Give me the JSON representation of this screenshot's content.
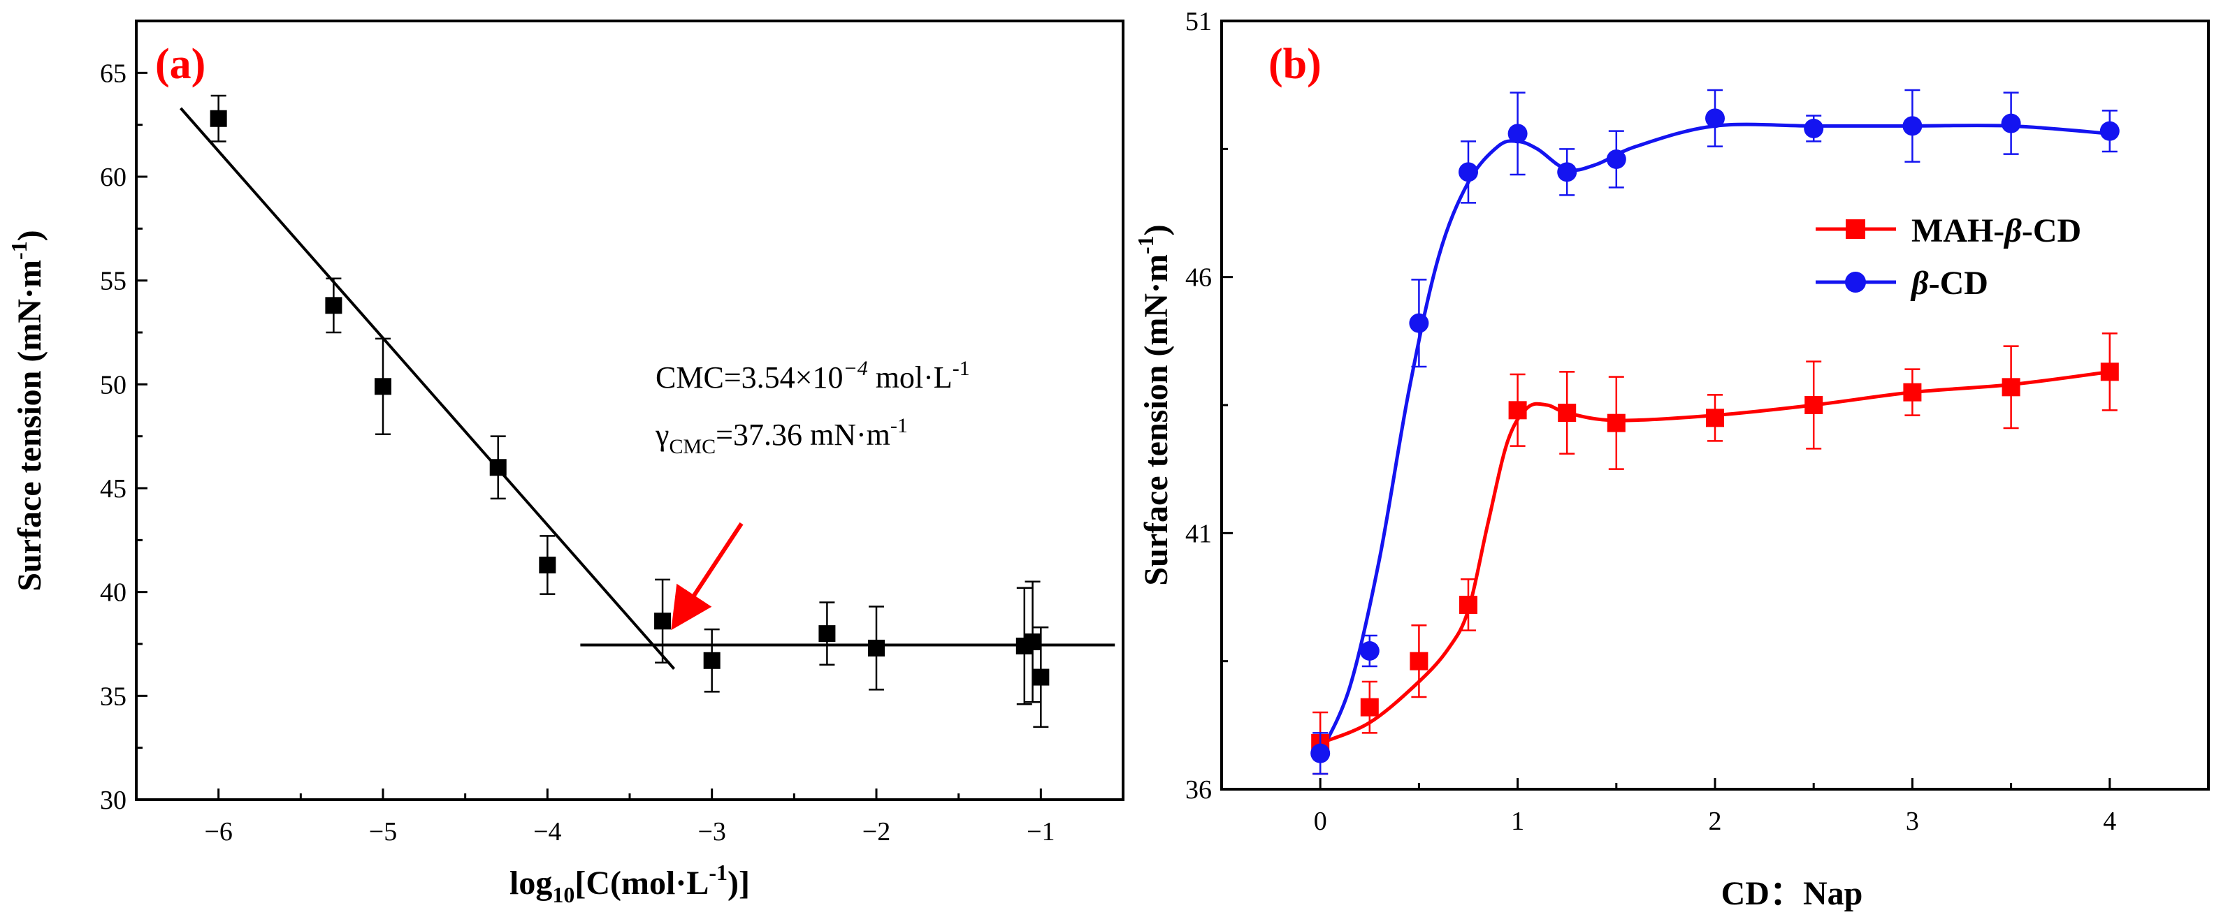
{
  "figure": {
    "colors": {
      "black": "#000000",
      "red": "#ff0000",
      "blue": "#1414f0",
      "label_red": "#ff0000",
      "arrow_red": "#ff0000"
    }
  },
  "chart_data": [
    {
      "type": "scatter",
      "panel_label": "(a)",
      "title": "",
      "xlabel": "log10[C(mol·L-1)]",
      "xlabel_parts": {
        "pre": "log",
        "sub": "10",
        "mid": "[C(mol·L",
        "sup": "-1",
        "post": ")]"
      },
      "ylabel": "Surface tension (mN·m-1)",
      "ylabel_parts": {
        "pre": "Surface tension (mN·m",
        "sup": "-1",
        "post": ")"
      },
      "xlim": [
        -6.5,
        -0.5
      ],
      "ylim": [
        30,
        67.5
      ],
      "xticks": [
        -6,
        -5,
        -4,
        -3,
        -2,
        -1
      ],
      "xtick_labels": [
        "−6",
        "−5",
        "−4",
        "−3",
        "−2",
        "−1"
      ],
      "yticks": [
        30,
        35,
        40,
        45,
        50,
        55,
        60,
        65
      ],
      "ytick_labels": [
        "30",
        "35",
        "40",
        "45",
        "50",
        "55",
        "60",
        "65"
      ],
      "series": [
        {
          "name": "data",
          "marker": "square",
          "color": "#000000",
          "x": [
            -6.0,
            -5.3,
            -5.0,
            -4.3,
            -4.0,
            -3.3,
            -3.0,
            -2.3,
            -2.0,
            -1.1,
            -1.05,
            -1.0
          ],
          "y": [
            62.8,
            53.8,
            49.9,
            46.0,
            41.3,
            38.6,
            36.7,
            38.0,
            37.3,
            37.4,
            37.6,
            35.9
          ],
          "err": [
            1.1,
            1.3,
            2.3,
            1.5,
            1.4,
            2.0,
            1.5,
            1.5,
            2.0,
            2.8,
            2.9,
            2.4
          ]
        }
      ],
      "fit_lines": [
        {
          "name": "pre-CMC fit",
          "x": [
            -6.23,
            -3.23
          ],
          "y": [
            63.3,
            36.3
          ]
        },
        {
          "name": "post-CMC fit",
          "x": [
            -3.8,
            -0.55
          ],
          "y": [
            37.45,
            37.45
          ]
        }
      ],
      "annotations": {
        "cmc": {
          "pre": "CMC=3.54×10",
          "sup": "−4",
          "post": " mol·L",
          "sup2": "-1"
        },
        "gamma": {
          "pre": "γ",
          "sub": "CMC",
          "post": "=37.36 mN·m",
          "sup": "-1"
        },
        "arrow": {
          "from": [
            -2.82,
            43.3
          ],
          "to": [
            -3.22,
            38.5
          ]
        }
      }
    },
    {
      "type": "line",
      "panel_label": "(b)",
      "title": "",
      "xlabel": "CD：Nap",
      "ylabel": "Surface tension (mN·m-1)",
      "ylabel_parts": {
        "pre": "Surface tension (mN·m",
        "sup": "-1",
        "post": ")"
      },
      "xlim": [
        -0.5,
        4.5
      ],
      "ylim": [
        36,
        51
      ],
      "xticks": [
        0,
        1,
        2,
        3,
        4
      ],
      "xtick_labels": [
        "0",
        "1",
        "2",
        "3",
        "4"
      ],
      "yticks": [
        36,
        41,
        46,
        51
      ],
      "ytick_labels": [
        "36",
        "41",
        "46",
        "51"
      ],
      "legend_position": "right",
      "series": [
        {
          "name": "MAH-β-CD",
          "legend_parts": {
            "pre": "MAH-",
            "it": "β",
            "post": "-CD"
          },
          "marker": "square",
          "color": "#ff0000",
          "x": [
            0,
            0.25,
            0.5,
            0.75,
            1.0,
            1.25,
            1.5,
            2.0,
            2.5,
            3.0,
            3.5,
            4.0
          ],
          "y": [
            36.9,
            37.6,
            38.5,
            39.6,
            43.4,
            43.35,
            43.15,
            43.25,
            43.5,
            43.75,
            43.85,
            44.15
          ],
          "err": [
            0.6,
            0.5,
            0.7,
            0.5,
            0.7,
            0.8,
            0.9,
            0.45,
            0.85,
            0.45,
            0.8,
            0.75
          ],
          "curve": [
            [
              0,
              36.9
            ],
            [
              0.25,
              37.3
            ],
            [
              0.5,
              38.1
            ],
            [
              0.65,
              38.75
            ],
            [
              0.75,
              39.5
            ],
            [
              0.85,
              41.2
            ],
            [
              0.95,
              42.8
            ],
            [
              1.05,
              43.45
            ],
            [
              1.15,
              43.5
            ],
            [
              1.25,
              43.35
            ],
            [
              1.5,
              43.2
            ],
            [
              2.0,
              43.3
            ],
            [
              2.5,
              43.5
            ],
            [
              3.0,
              43.75
            ],
            [
              3.5,
              43.9
            ],
            [
              4.0,
              44.15
            ]
          ]
        },
        {
          "name": "β-CD",
          "legend_parts": {
            "pre": "",
            "it": "β",
            "post": "-CD"
          },
          "marker": "circle",
          "color": "#1414f0",
          "x": [
            0,
            0.25,
            0.5,
            0.75,
            1.0,
            1.25,
            1.5,
            2.0,
            2.5,
            3.0,
            3.5,
            4.0
          ],
          "y": [
            36.7,
            38.7,
            45.1,
            48.05,
            48.8,
            48.05,
            48.3,
            49.1,
            48.9,
            48.95,
            49.0,
            48.85
          ],
          "err": [
            0.4,
            0.3,
            0.85,
            0.6,
            0.8,
            0.45,
            0.55,
            0.55,
            0.25,
            0.7,
            0.6,
            0.4
          ],
          "curve": [
            [
              0,
              36.7
            ],
            [
              0.15,
              38.0
            ],
            [
              0.3,
              40.5
            ],
            [
              0.45,
              43.8
            ],
            [
              0.6,
              46.4
            ],
            [
              0.75,
              47.85
            ],
            [
              0.9,
              48.55
            ],
            [
              1.0,
              48.65
            ],
            [
              1.1,
              48.5
            ],
            [
              1.25,
              48.1
            ],
            [
              1.4,
              48.2
            ],
            [
              1.6,
              48.55
            ],
            [
              2.0,
              48.95
            ],
            [
              2.5,
              48.95
            ],
            [
              3.0,
              48.95
            ],
            [
              3.5,
              48.95
            ],
            [
              4.0,
              48.8
            ]
          ]
        }
      ]
    }
  ]
}
